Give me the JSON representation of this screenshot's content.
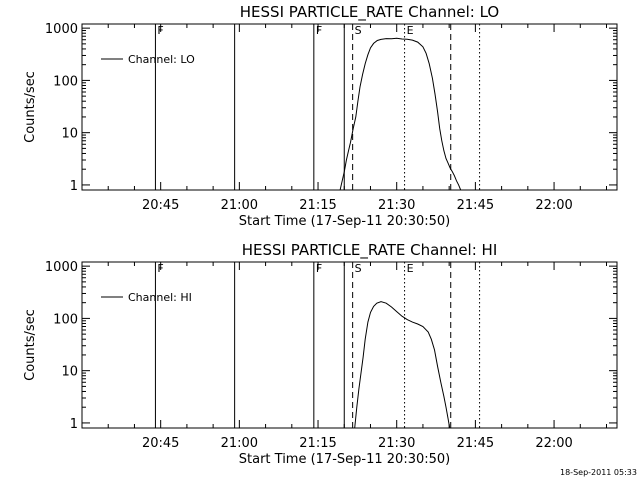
{
  "footer": {
    "timestamp": "18-Sep-2011 05:33"
  },
  "chart_data": [
    {
      "type": "line",
      "title": "HESSI PARTICLE_RATE Channel: LO",
      "xlabel": "Start Time (17-Sep-11 20:30:50)",
      "ylabel": "Counts/sec",
      "y_scale": "log",
      "xlim_min": [
        0,
        102
      ],
      "ylim": [
        0.8,
        1200
      ],
      "x_ticks_min": [
        15,
        30,
        45,
        60,
        75,
        90
      ],
      "x_tick_labels": [
        "20:45",
        "21:00",
        "21:15",
        "21:30",
        "21:45",
        "22:00"
      ],
      "y_ticks": [
        1,
        10,
        100,
        1000
      ],
      "y_tick_labels": [
        "1",
        "10",
        "100",
        "1000"
      ],
      "legend": {
        "label": "Channel: LO",
        "placement": "top-left"
      },
      "markers": [
        {
          "x_min": 14.0,
          "style": "solid",
          "label": "F"
        },
        {
          "x_min": 29.1,
          "style": "solid",
          "label": ""
        },
        {
          "x_min": 44.2,
          "style": "solid",
          "label": "F"
        },
        {
          "x_min": 50.0,
          "style": "solid",
          "label": ""
        },
        {
          "x_min": 51.6,
          "style": "dashed",
          "label": "S"
        },
        {
          "x_min": 61.5,
          "style": "dotted",
          "label": "E"
        },
        {
          "x_min": 70.3,
          "style": "dashed",
          "label": ""
        },
        {
          "x_min": 75.8,
          "style": "dotted",
          "label": ""
        }
      ],
      "series": [
        {
          "name": "Channel: LO",
          "x": [
            49.2,
            49.6,
            50.0,
            50.4,
            50.8,
            51.2,
            51.7,
            52.2,
            52.6,
            53.0,
            53.5,
            54.0,
            54.5,
            55.0,
            55.6,
            56.3,
            57.0,
            58.0,
            59.0,
            60.0,
            61.0,
            62.0,
            63.0,
            64.0,
            65.0,
            65.6,
            66.2,
            66.8,
            67.3,
            67.8,
            68.2,
            68.6,
            69.0,
            69.4,
            69.8,
            70.2,
            70.6,
            71.0,
            71.4,
            71.8,
            72.2
          ],
          "y": [
            0.8,
            1.2,
            1.8,
            3,
            4.5,
            6.5,
            12,
            20,
            40,
            75,
            130,
            210,
            310,
            420,
            510,
            580,
            610,
            630,
            625,
            640,
            620,
            615,
            590,
            540,
            440,
            330,
            210,
            110,
            55,
            25,
            12,
            7,
            4.5,
            3.2,
            2.6,
            2.1,
            1.8,
            1.5,
            1.2,
            1.0,
            0.8
          ]
        }
      ]
    },
    {
      "type": "line",
      "title": "HESSI PARTICLE_RATE Channel: HI",
      "xlabel": "Start Time (17-Sep-11 20:30:50)",
      "ylabel": "Counts/sec",
      "y_scale": "log",
      "xlim_min": [
        0,
        102
      ],
      "ylim": [
        0.8,
        1200
      ],
      "x_ticks_min": [
        15,
        30,
        45,
        60,
        75,
        90
      ],
      "x_tick_labels": [
        "20:45",
        "21:00",
        "21:15",
        "21:30",
        "21:45",
        "22:00"
      ],
      "y_ticks": [
        1,
        10,
        100,
        1000
      ],
      "y_tick_labels": [
        "1",
        "10",
        "100",
        "1000"
      ],
      "legend": {
        "label": "Channel: HI",
        "placement": "top-left"
      },
      "markers": [
        {
          "x_min": 14.0,
          "style": "solid",
          "label": "F"
        },
        {
          "x_min": 29.1,
          "style": "solid",
          "label": ""
        },
        {
          "x_min": 44.2,
          "style": "solid",
          "label": "F"
        },
        {
          "x_min": 50.0,
          "style": "solid",
          "label": ""
        },
        {
          "x_min": 51.6,
          "style": "dashed",
          "label": "S"
        },
        {
          "x_min": 61.5,
          "style": "dotted",
          "label": "E"
        },
        {
          "x_min": 70.3,
          "style": "dashed",
          "label": ""
        },
        {
          "x_min": 75.8,
          "style": "dotted",
          "label": ""
        }
      ],
      "series": [
        {
          "name": "Channel: HI",
          "x": [
            52.0,
            52.4,
            52.8,
            53.2,
            53.6,
            54.0,
            54.5,
            55.0,
            55.6,
            56.2,
            57.0,
            58.0,
            59.0,
            60.0,
            61.0,
            62.0,
            63.0,
            64.0,
            65.0,
            66.0,
            66.6,
            67.2,
            67.8,
            68.4,
            69.0,
            69.4,
            69.8,
            70.1
          ],
          "y": [
            0.8,
            2,
            4.5,
            9,
            18,
            40,
            85,
            130,
            170,
            195,
            210,
            195,
            165,
            135,
            110,
            95,
            85,
            78,
            70,
            55,
            40,
            25,
            12,
            6,
            3.2,
            2.0,
            1.2,
            0.8
          ]
        }
      ]
    }
  ]
}
